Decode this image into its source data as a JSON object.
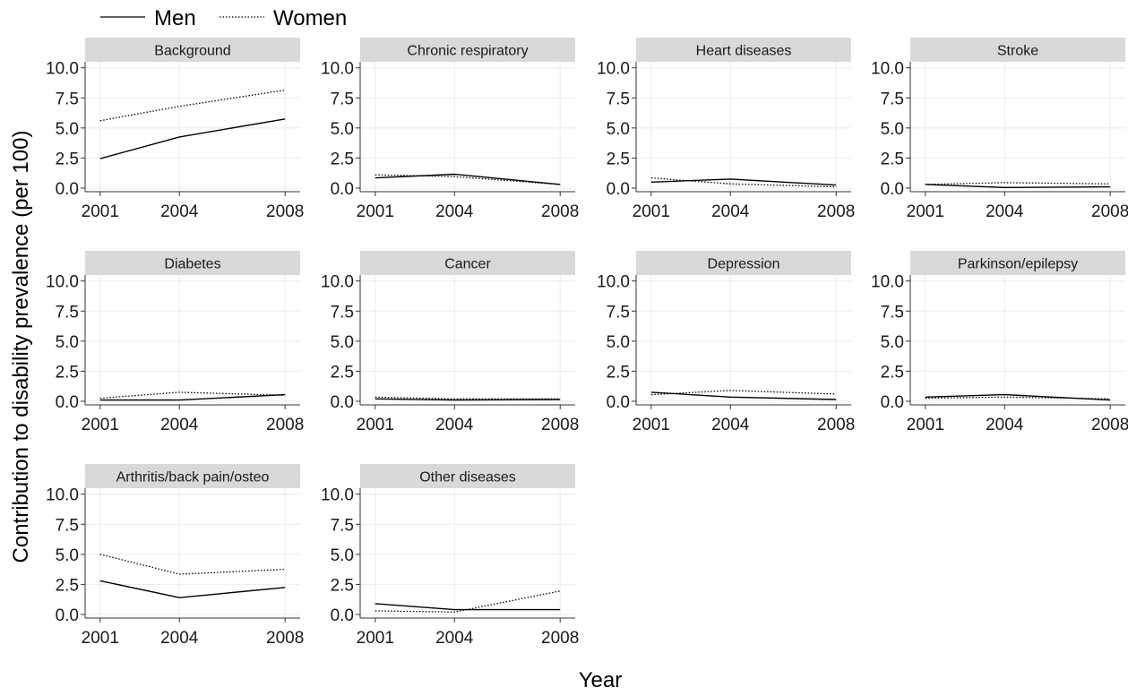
{
  "chart_data": {
    "type": "line",
    "ylabel": "Contribution to disability prevalence (per 100)",
    "xlabel": "Year",
    "x": [
      2001,
      2004,
      2008
    ],
    "x_tick_labels": [
      "2001",
      "2004",
      "2008"
    ],
    "ylim": [
      -0.3,
      10.5
    ],
    "y_ticks": [
      0,
      2.5,
      5,
      7.5,
      10
    ],
    "y_tick_labels": [
      "0.0",
      "2.5",
      "5.0",
      "7.5",
      "10.0"
    ],
    "grid": true,
    "legend": {
      "position": "top-left",
      "entries": [
        {
          "name": "Men",
          "line_style": "solid"
        },
        {
          "name": "Women",
          "line_style": "dotted"
        }
      ]
    },
    "panels": [
      {
        "title": "Background",
        "series": [
          {
            "name": "Men",
            "values": [
              2.45,
              4.25,
              5.75
            ]
          },
          {
            "name": "Women",
            "values": [
              5.6,
              6.8,
              8.15
            ]
          }
        ]
      },
      {
        "title": "Chronic respiratory",
        "series": [
          {
            "name": "Men",
            "values": [
              0.85,
              1.15,
              0.3
            ]
          },
          {
            "name": "Women",
            "values": [
              1.1,
              0.95,
              0.3
            ]
          }
        ]
      },
      {
        "title": "Heart diseases",
        "series": [
          {
            "name": "Men",
            "values": [
              0.5,
              0.75,
              0.25
            ]
          },
          {
            "name": "Women",
            "values": [
              0.85,
              0.35,
              0.1
            ]
          }
        ]
      },
      {
        "title": "Stroke",
        "series": [
          {
            "name": "Men",
            "values": [
              0.3,
              0.05,
              0.1
            ]
          },
          {
            "name": "Women",
            "values": [
              0.3,
              0.45,
              0.35
            ]
          }
        ]
      },
      {
        "title": "Diabetes",
        "series": [
          {
            "name": "Men",
            "values": [
              0.1,
              0.1,
              0.55
            ]
          },
          {
            "name": "Women",
            "values": [
              0.25,
              0.75,
              0.5
            ]
          }
        ]
      },
      {
        "title": "Cancer",
        "series": [
          {
            "name": "Men",
            "values": [
              0.2,
              0.1,
              0.15
            ]
          },
          {
            "name": "Women",
            "values": [
              0.35,
              0.2,
              0.2
            ]
          }
        ]
      },
      {
        "title": "Depression",
        "series": [
          {
            "name": "Men",
            "values": [
              0.75,
              0.35,
              0.15
            ]
          },
          {
            "name": "Women",
            "values": [
              0.55,
              0.9,
              0.6
            ]
          }
        ]
      },
      {
        "title": "Parkinson/epilepsy",
        "series": [
          {
            "name": "Men",
            "values": [
              0.35,
              0.55,
              0.1
            ]
          },
          {
            "name": "Women",
            "values": [
              0.25,
              0.35,
              0.2
            ]
          }
        ]
      },
      {
        "title": "Arthritis/back pain/osteo",
        "series": [
          {
            "name": "Men",
            "values": [
              2.8,
              1.4,
              2.25
            ]
          },
          {
            "name": "Women",
            "values": [
              5.0,
              3.35,
              3.75
            ]
          }
        ]
      },
      {
        "title": "Other diseases",
        "series": [
          {
            "name": "Men",
            "values": [
              0.9,
              0.4,
              0.4
            ]
          },
          {
            "name": "Women",
            "values": [
              0.3,
              0.2,
              1.95
            ]
          }
        ]
      }
    ]
  }
}
